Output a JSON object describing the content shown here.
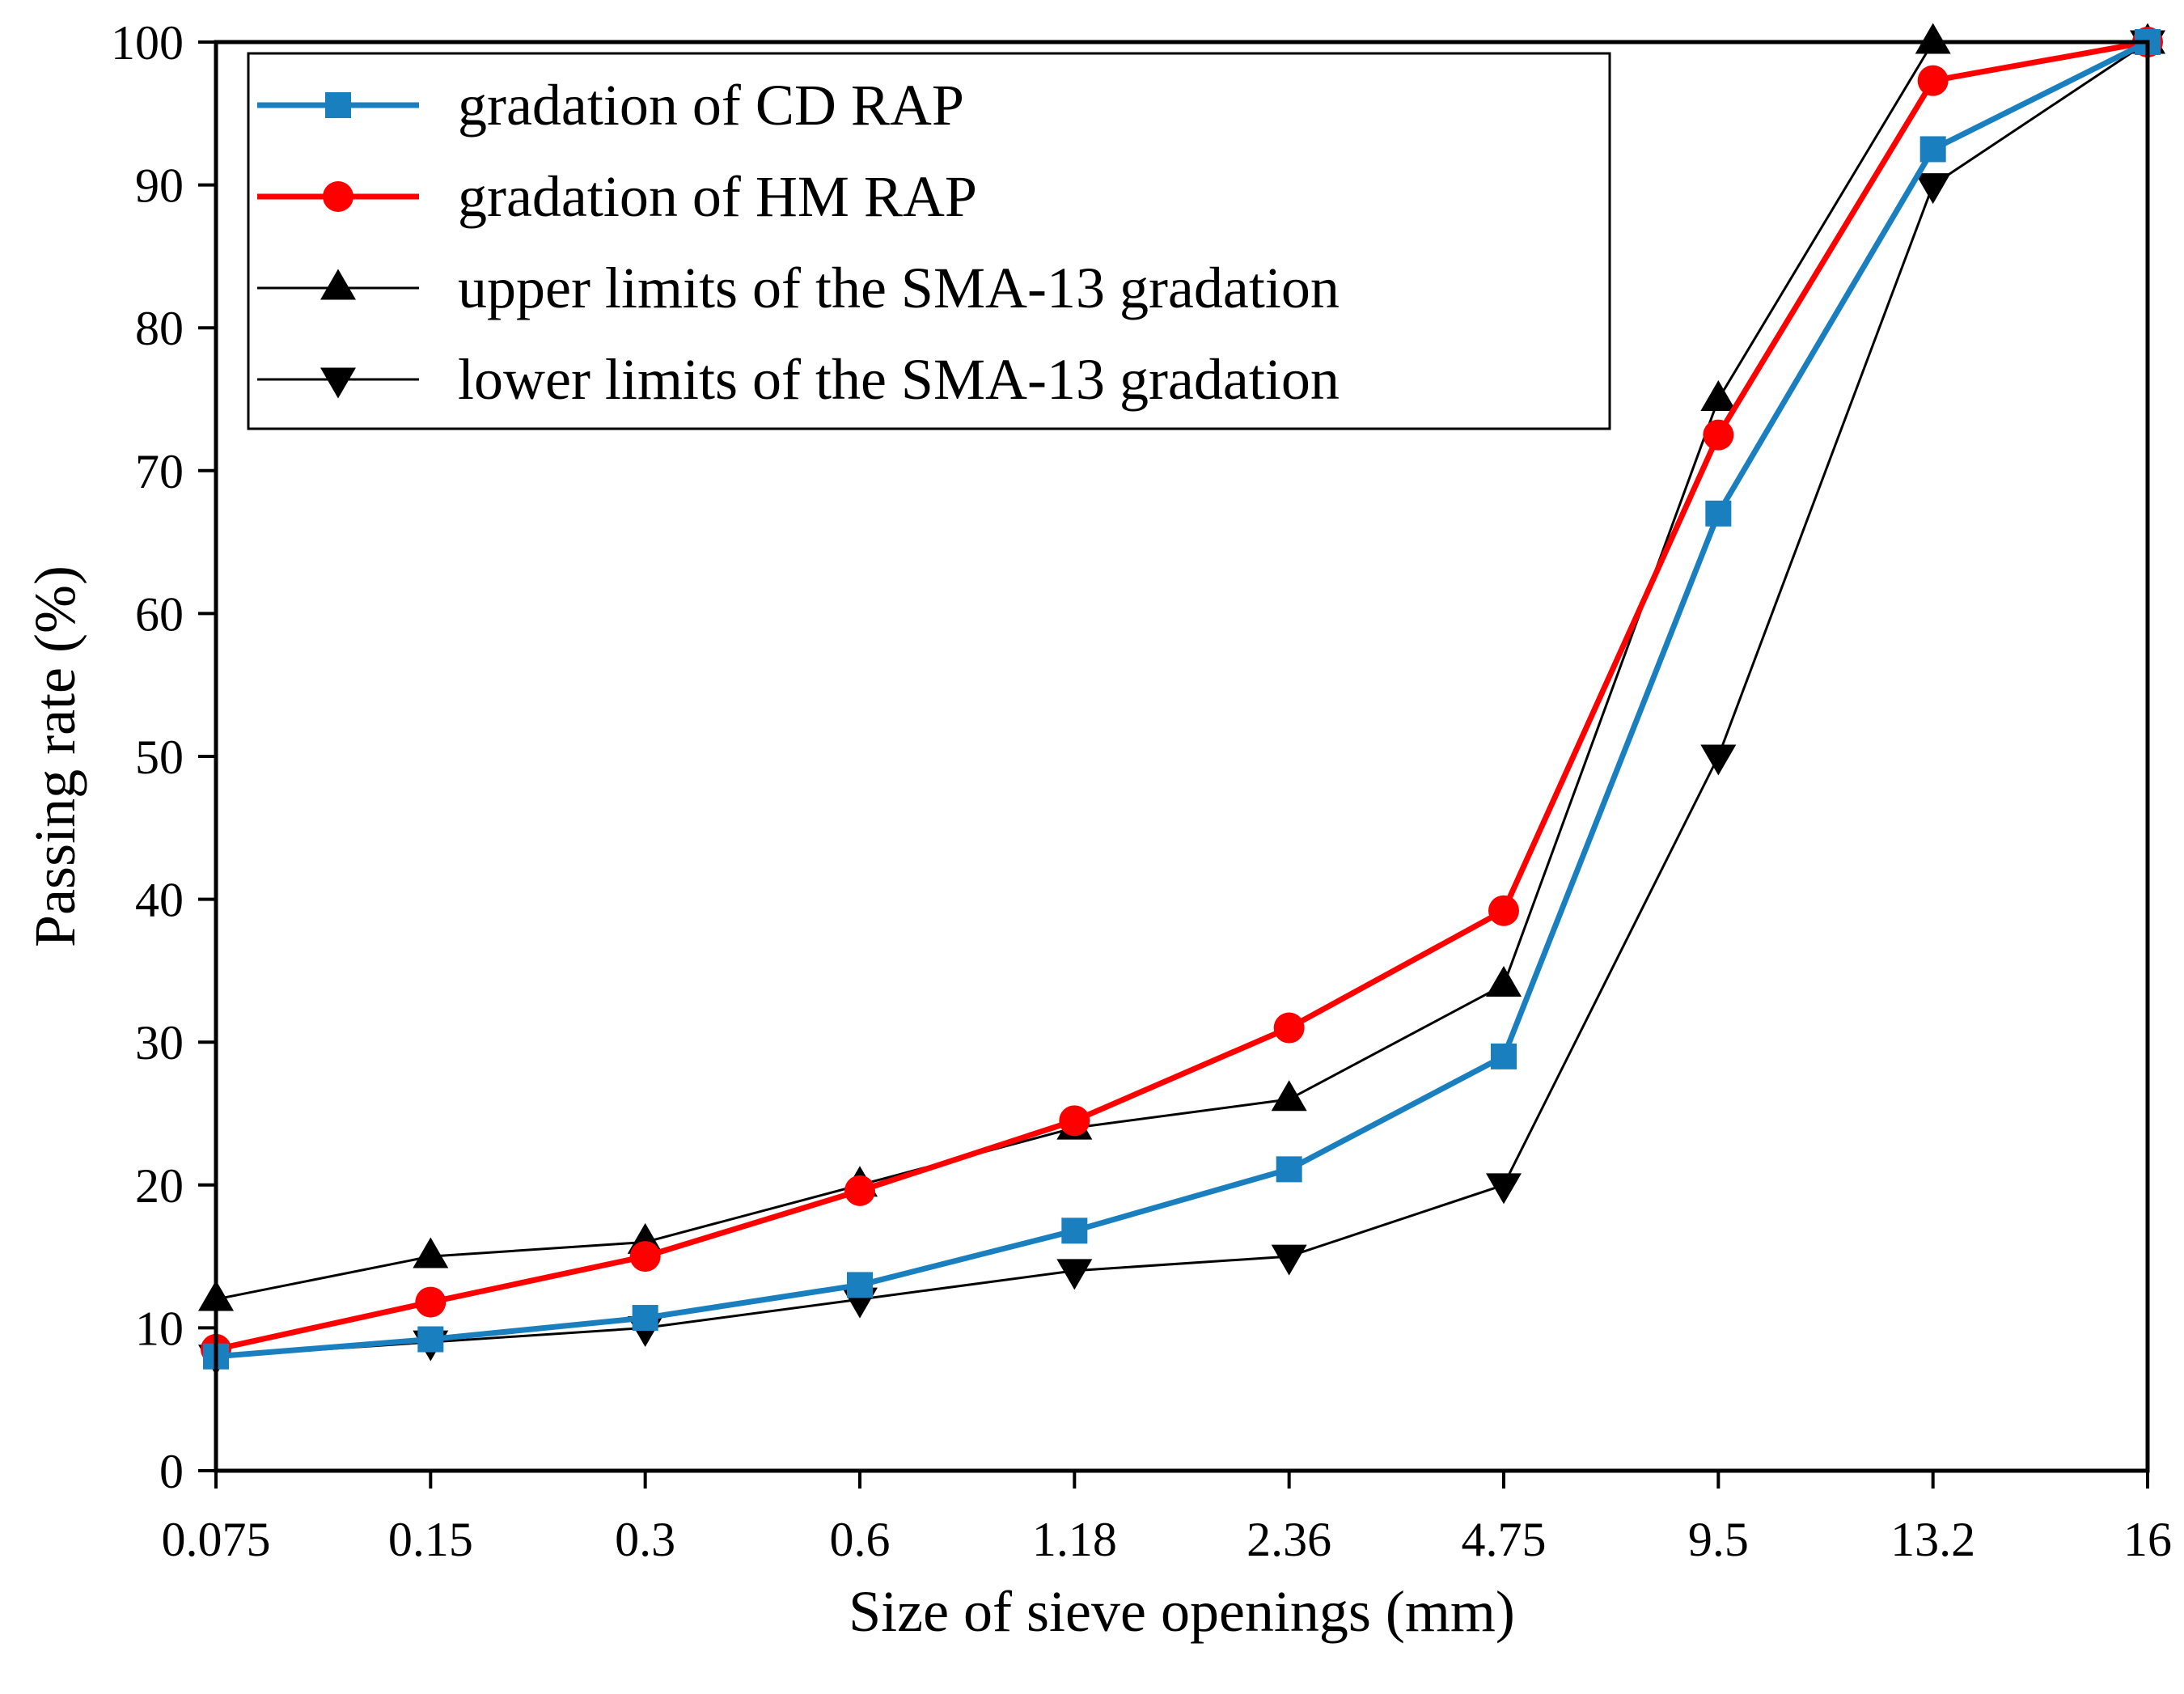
{
  "chart_data": {
    "type": "line",
    "title": "",
    "xlabel": "Size of sieve openings (mm)",
    "ylabel": "Passing rate (%)",
    "categories": [
      "0.075",
      "0.15",
      "0.3",
      "0.6",
      "1.18",
      "2.36",
      "4.75",
      "9.5",
      "13.2",
      "16"
    ],
    "ylim": [
      0,
      100
    ],
    "yticks": [
      "0",
      "10",
      "20",
      "30",
      "40",
      "50",
      "60",
      "70",
      "80",
      "90",
      "100"
    ],
    "grid": false,
    "legend_position": "top-left",
    "series": [
      {
        "name": "gradation of CD RAP",
        "color": "#1a7fbf",
        "marker": "square",
        "line_width": "thick",
        "values": [
          8.0,
          9.2,
          10.7,
          13.0,
          16.8,
          21.1,
          29.0,
          67.0,
          92.5,
          100
        ]
      },
      {
        "name": "gradation of HM RAP",
        "color": "#ff0000",
        "marker": "circle",
        "line_width": "thick",
        "values": [
          8.5,
          11.8,
          15.0,
          19.6,
          24.5,
          31.0,
          39.2,
          72.5,
          97.3,
          100
        ]
      },
      {
        "name": "upper limits of the SMA-13 gradation",
        "color": "#000000",
        "marker": "triangle-up",
        "line_width": "thin",
        "values": [
          12,
          15,
          16,
          20,
          24,
          26,
          34,
          75,
          100,
          100
        ]
      },
      {
        "name": "lower limits of the SMA-13 gradation",
        "color": "#000000",
        "marker": "triangle-down",
        "line_width": "thin",
        "values": [
          8,
          9,
          10,
          12,
          14,
          15,
          20,
          50,
          90,
          100
        ]
      }
    ]
  }
}
